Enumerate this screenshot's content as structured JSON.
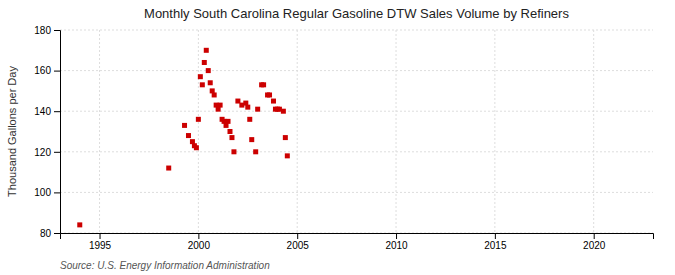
{
  "chart_data": {
    "type": "scatter",
    "title": "Monthly South Carolina Regular Gasoline DTW Sales Volume by Refiners",
    "ylabel": "Thousand Gallons per Day",
    "source": "Source: U.S. Energy Information Administration",
    "color": "#cc0000",
    "marker": "square",
    "grid": true,
    "xlim": [
      1993.0,
      2023.0
    ],
    "ylim": [
      80,
      180
    ],
    "xticks": [
      1995,
      2000,
      2005,
      2010,
      2015,
      2020
    ],
    "yticks": [
      80,
      100,
      120,
      140,
      160,
      180
    ],
    "x": [
      1994.0,
      1998.5,
      1999.3,
      1999.5,
      1999.7,
      1999.8,
      1999.9,
      2000.0,
      2000.1,
      2000.2,
      2000.3,
      2000.4,
      2000.5,
      2000.6,
      2000.7,
      2000.8,
      2000.9,
      2001.0,
      2001.1,
      2001.2,
      2001.3,
      2001.4,
      2001.5,
      2001.6,
      2001.7,
      2001.8,
      2002.0,
      2002.2,
      2002.4,
      2002.5,
      2002.6,
      2002.7,
      2002.9,
      2003.0,
      2003.2,
      2003.3,
      2003.5,
      2003.6,
      2003.8,
      2003.9,
      2004.0,
      2004.1,
      2004.3,
      2004.4,
      2004.5
    ],
    "values": [
      84,
      112,
      133,
      128,
      125,
      123,
      122,
      136,
      157,
      153,
      164,
      170,
      160,
      154,
      150,
      148,
      143,
      141,
      143,
      136,
      135,
      133,
      135,
      130,
      127,
      120,
      145,
      143,
      144,
      142,
      136,
      126,
      120,
      141,
      153,
      153,
      148,
      148,
      145,
      141,
      141,
      141,
      140,
      127,
      118
    ]
  }
}
